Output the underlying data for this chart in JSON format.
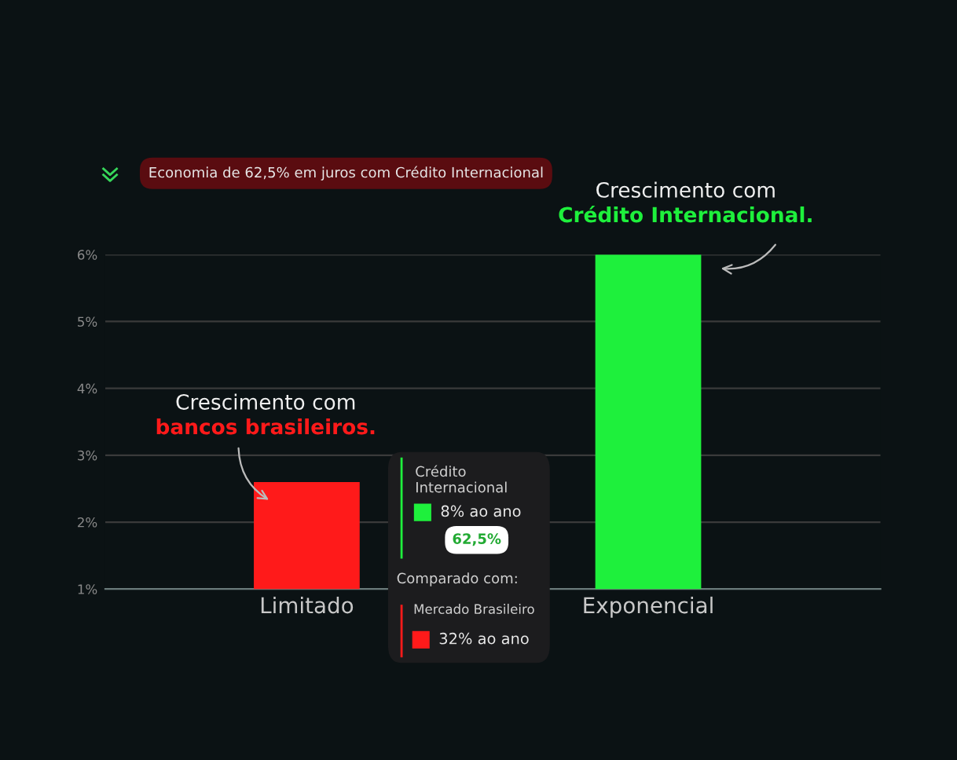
{
  "chart_data": {
    "type": "bar",
    "title": "Economia de 62,5% em juros com Crédito Internacional",
    "categories": [
      "Limitado",
      "Exponencial"
    ],
    "values": [
      2.6,
      6.0
    ],
    "colors": [
      "#ff1a1a",
      "#1ef03c"
    ],
    "ylim": [
      1,
      6
    ],
    "yticks": [
      {
        "value": 1,
        "label": "1%"
      },
      {
        "value": 2,
        "label": "2%"
      },
      {
        "value": 3,
        "label": "3%"
      },
      {
        "value": 4,
        "label": "4%"
      },
      {
        "value": 5,
        "label": "5%"
      },
      {
        "value": 6,
        "label": "6%"
      }
    ],
    "grid": "y",
    "annotations": [
      {
        "text": "Crescimento com\nbancos brasileiros.",
        "x": "Limitado",
        "y": 2.6
      },
      {
        "text": "Crescimento com\nCrédito Internacional.",
        "x": "Exponencial",
        "y": 6.0
      },
      "Crédito\nInternacional",
      "8% ao ano",
      "62,5%",
      "Comparado com:",
      "Mercado Brasileiro",
      "32% ao ano"
    ]
  }
}
